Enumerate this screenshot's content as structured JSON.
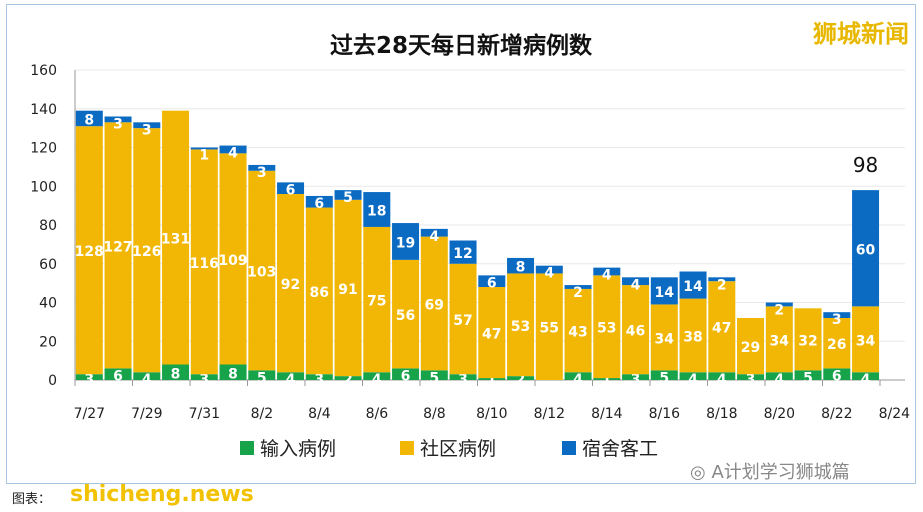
{
  "watermark_top": "狮城新闻",
  "watermark_bottom": "shicheng.news",
  "caption": "图表：",
  "wechat_label": "A计划学习狮城篇",
  "chart_data": {
    "type": "bar",
    "stacked": true,
    "title": "过去28天每日新增病例数",
    "categories": [
      "7/27",
      "7/28",
      "7/29",
      "7/30",
      "7/31",
      "8/1",
      "8/2",
      "8/3",
      "8/4",
      "8/5",
      "8/6",
      "8/7",
      "8/8",
      "8/9",
      "8/10",
      "8/11",
      "8/12",
      "8/13",
      "8/14",
      "8/15",
      "8/16",
      "8/17",
      "8/18",
      "8/19",
      "8/20",
      "8/21",
      "8/22",
      "8/23"
    ],
    "xtick_labels": [
      "7/27",
      "7/29",
      "7/31",
      "8/2",
      "8/4",
      "8/6",
      "8/8",
      "8/10",
      "8/12",
      "8/14",
      "8/16",
      "8/18",
      "8/20",
      "8/22",
      "8/24"
    ],
    "series": [
      {
        "name": "输入病例",
        "color": "#16a34a",
        "values": [
          3,
          6,
          4,
          8,
          3,
          8,
          5,
          4,
          3,
          2,
          4,
          6,
          5,
          3,
          1,
          2,
          0,
          4,
          1,
          3,
          5,
          4,
          4,
          3,
          4,
          5,
          6,
          4
        ]
      },
      {
        "name": "社区病例",
        "color": "#f2b705",
        "values": [
          128,
          127,
          126,
          131,
          116,
          109,
          103,
          92,
          86,
          91,
          75,
          56,
          69,
          57,
          47,
          53,
          55,
          43,
          53,
          46,
          34,
          38,
          47,
          29,
          34,
          32,
          26,
          34
        ]
      },
      {
        "name": "宿舍客工",
        "color": "#0b6bc2",
        "values": [
          8,
          3,
          3,
          0,
          1,
          4,
          3,
          6,
          6,
          5,
          18,
          19,
          4,
          12,
          6,
          8,
          4,
          2,
          4,
          4,
          14,
          14,
          2,
          0,
          2,
          0,
          3,
          60
        ]
      }
    ],
    "annotation": "98",
    "ylim": [
      0,
      160
    ],
    "yticks": [
      0,
      20,
      40,
      60,
      80,
      100,
      120,
      140,
      160
    ],
    "grid": true,
    "legend": "bottom"
  }
}
